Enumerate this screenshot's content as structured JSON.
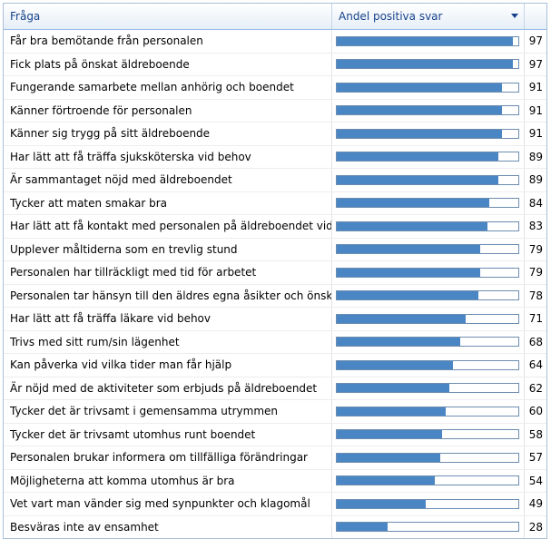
{
  "header": {
    "question_label": "Fråga",
    "share_label": "Andel positiva svar"
  },
  "rows": [
    {
      "question": "Får bra bemötande från personalen",
      "value": 97
    },
    {
      "question": "Fick plats på önskat äldreboende",
      "value": 97
    },
    {
      "question": "Fungerande samarbete mellan anhörig och boendet",
      "value": 91
    },
    {
      "question": "Känner förtroende för personalen",
      "value": 91
    },
    {
      "question": "Känner sig trygg på sitt äldreboende",
      "value": 91
    },
    {
      "question": "Har lätt att få träffa sjuksköterska vid behov",
      "value": 89
    },
    {
      "question": "Är sammantaget nöjd med äldreboendet",
      "value": 89
    },
    {
      "question": "Tycker att maten smakar bra",
      "value": 84
    },
    {
      "question": "Har lätt att få kontakt med personalen på äldreboendet vid behov",
      "value": 83
    },
    {
      "question": "Upplever måltiderna som en trevlig stund",
      "value": 79
    },
    {
      "question": "Personalen har tillräckligt med tid för arbetet",
      "value": 79
    },
    {
      "question": "Personalen tar hänsyn till den äldres egna åsikter och önskemål",
      "value": 78
    },
    {
      "question": "Har lätt att få träffa läkare vid behov",
      "value": 71
    },
    {
      "question": "Trivs med sitt rum/sin lägenhet",
      "value": 68
    },
    {
      "question": "Kan påverka vid vilka tider man får hjälp",
      "value": 64
    },
    {
      "question": "Är nöjd med de aktiviteter som erbjuds på äldreboendet",
      "value": 62
    },
    {
      "question": "Tycker det är trivsamt i gemensamma utrymmen",
      "value": 60
    },
    {
      "question": "Tycker det är trivsamt utomhus runt boendet",
      "value": 58
    },
    {
      "question": "Personalen brukar informera om tillfälliga förändringar",
      "value": 57
    },
    {
      "question": "Möjligheterna att komma utomhus är bra",
      "value": 54
    },
    {
      "question": "Vet vart man vänder sig med synpunkter och klagomål",
      "value": 49
    },
    {
      "question": "Besväras inte av ensamhet",
      "value": 28
    }
  ],
  "colors": {
    "bar_fill": "#4b86c4",
    "header_text": "#15428b"
  },
  "icons": {
    "sort": "sort-descending-icon"
  }
}
